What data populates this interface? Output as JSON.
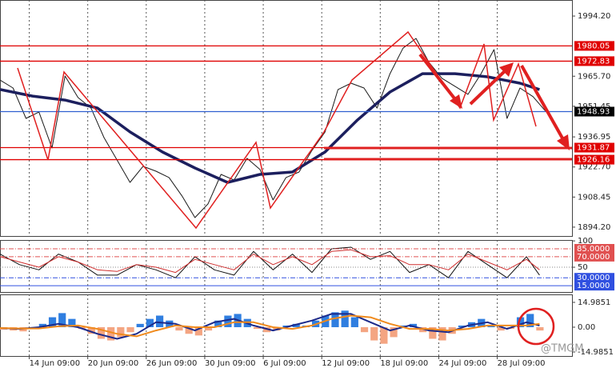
{
  "chart_data": [
    {
      "type": "line",
      "xlim": [
        0,
        176
      ],
      "ylim": [
        1890,
        2001.8
      ],
      "yticks": [
        {
          "value": 1994.2,
          "label": "1994.20"
        },
        {
          "value": 1965.7,
          "label": "1965.70"
        },
        1951.45,
        1936.95,
        {
          "value": 1922.7,
          "label": "1922.70"
        },
        1908.45,
        {
          "value": 1894.2,
          "label": "1894.20"
        }
      ],
      "levels": [
        {
          "value": 1980.05,
          "color": "#e00000"
        },
        {
          "value": 1972.83,
          "color": "#e00000"
        },
        {
          "value": 1948.93,
          "color": "#000000",
          "line_color": "#3060d0"
        },
        {
          "value": 1931.87,
          "color": "#e00000"
        },
        {
          "value": 1926.16,
          "color": "#e00000"
        }
      ],
      "series": [
        {
          "color": "#1a1a1a",
          "x": [
            0,
            4,
            8,
            12,
            16,
            20,
            24,
            28,
            32,
            36,
            40,
            44,
            48,
            52,
            56,
            60,
            64,
            68,
            72,
            76,
            80,
            84,
            88,
            92,
            96,
            100,
            104,
            108,
            112,
            116,
            120,
            124,
            128,
            132,
            136,
            140,
            144,
            148,
            152,
            156,
            160,
            164,
            168
          ],
          "values": [
            1963.9,
            1960.1,
            1945.7,
            1948.7,
            1931.7,
            1965.8,
            1955.6,
            1950.6,
            1936.6,
            1926.0,
            1915.4,
            1923.0,
            1920.7,
            1917.7,
            1909.0,
            1898.7,
            1905.2,
            1919.2,
            1916.5,
            1926.8,
            1921.5,
            1907.1,
            1917.7,
            1920.3,
            1930.6,
            1939.3,
            1959.4,
            1962.4,
            1960.1,
            1950.6,
            1966.9,
            1979.0,
            1983.6,
            1972.2,
            1964.7,
            1960.9,
            1957.1,
            1966.9,
            1978.3,
            1945.7,
            1960.1,
            1956.0,
            1948.9
          ]
        },
        {
          "color": "#1c1f5e",
          "x": [
            0,
            10,
            20,
            30,
            40,
            50,
            60,
            70,
            80,
            90,
            100,
            110,
            120,
            130,
            140,
            150,
            160,
            166
          ],
          "values": [
            1959.4,
            1956.3,
            1954.4,
            1950.6,
            1939.3,
            1929.8,
            1922.2,
            1915.4,
            1919.2,
            1920.3,
            1929.8,
            1945.0,
            1958.2,
            1966.9,
            1966.9,
            1965.4,
            1962.4,
            1959.4
          ]
        }
      ]
    },
    {
      "type": "line",
      "xlim": [
        0,
        176
      ],
      "ylim": [
        3,
        101.7
      ],
      "yticks": [
        100,
        50
      ],
      "levels": [
        {
          "value": 85,
          "label": "85.0000",
          "color": "#e05050"
        },
        {
          "value": 70,
          "label": "70.0000",
          "color": "#e05050"
        },
        {
          "value": 30,
          "label": "30.0000",
          "color": "#3050e0"
        },
        {
          "value": 15,
          "label": "15.0000",
          "color": "#3050e0"
        }
      ],
      "series": [
        {
          "color": "#111111",
          "x": [
            0,
            6,
            12,
            18,
            24,
            30,
            36,
            42,
            48,
            54,
            60,
            66,
            72,
            78,
            84,
            90,
            96,
            102,
            108,
            114,
            120,
            126,
            132,
            138,
            144,
            150,
            156,
            162,
            166
          ],
          "values": [
            75,
            55,
            45,
            75,
            60,
            35,
            35,
            55,
            45,
            30,
            70,
            45,
            35,
            80,
            45,
            75,
            40,
            85,
            88,
            65,
            80,
            40,
            55,
            30,
            80,
            55,
            30,
            70,
            35
          ]
        },
        {
          "color": "#d03030",
          "x": [
            0,
            6,
            12,
            18,
            24,
            30,
            36,
            42,
            48,
            54,
            60,
            66,
            72,
            78,
            84,
            90,
            96,
            102,
            108,
            114,
            120,
            126,
            132,
            138,
            144,
            150,
            156,
            162,
            166
          ],
          "values": [
            70,
            60,
            50,
            70,
            60,
            45,
            42,
            55,
            50,
            40,
            65,
            55,
            45,
            75,
            55,
            70,
            55,
            80,
            83,
            70,
            72,
            55,
            55,
            45,
            75,
            60,
            45,
            65,
            45
          ]
        }
      ]
    },
    {
      "type": "macd",
      "xlim": [
        0,
        176
      ],
      "ylim": [
        -17.4,
        19.8
      ],
      "yticks": [
        14.9851,
        {
          "value": 0,
          "label": "0.00"
        },
        -14.9851
      ],
      "xticks": [
        {
          "value": 9,
          "label": "14 Jun 09:00"
        },
        {
          "value": 27,
          "label": "20 Jun 09:00"
        },
        {
          "value": 45,
          "label": "26 Jun 09:00"
        },
        {
          "value": 63,
          "label": "30 Jun 09:00"
        },
        {
          "value": 81,
          "label": "6 Jul 09:00"
        },
        {
          "value": 99,
          "label": "12 Jul 09:00"
        },
        {
          "value": 117,
          "label": "18 Jul 09:00"
        },
        {
          "value": 135,
          "label": "24 Jul 09:00"
        },
        {
          "value": 153,
          "label": "28 Jul 09:00"
        }
      ],
      "histogram": {
        "positive_color": "#2f7ee0",
        "negative_color": "#f4a582",
        "x": [
          0,
          3,
          6,
          9,
          12,
          15,
          18,
          21,
          24,
          27,
          30,
          33,
          36,
          39,
          42,
          45,
          48,
          51,
          54,
          57,
          60,
          63,
          66,
          69,
          72,
          75,
          78,
          81,
          84,
          87,
          90,
          93,
          96,
          99,
          102,
          105,
          108,
          111,
          114,
          117,
          120,
          123,
          126,
          129,
          132,
          135,
          138,
          141,
          144,
          147,
          150,
          153,
          156,
          159,
          162,
          165
        ],
        "values": [
          -1.5,
          -2,
          -2.5,
          -1,
          2,
          6,
          8.5,
          5,
          -1,
          -4,
          -7,
          -8,
          -6,
          -3,
          2,
          5,
          7,
          4,
          -2,
          -4,
          -5,
          -2,
          4,
          7,
          8,
          5,
          -1,
          -3,
          -2,
          1,
          2,
          1,
          4,
          7,
          9,
          10,
          6,
          -3,
          -8,
          -10,
          -6,
          1,
          2,
          -3,
          -7,
          -8,
          -4,
          1,
          3,
          5,
          1,
          -2,
          -1,
          6,
          8,
          -2
        ]
      },
      "series": [
        {
          "color": "#1c2a8a",
          "x": [
            0,
            6,
            12,
            18,
            24,
            30,
            36,
            42,
            48,
            54,
            60,
            66,
            72,
            78,
            84,
            90,
            96,
            102,
            108,
            114,
            120,
            126,
            132,
            138,
            144,
            150,
            156,
            162,
            166
          ],
          "values": [
            -0.5,
            -1,
            0,
            2,
            0,
            -4,
            -7,
            -4,
            3,
            2,
            -2,
            3,
            5,
            1,
            -2,
            1,
            4,
            8,
            8,
            3,
            -2,
            1,
            -2,
            -3,
            1,
            3,
            -1,
            3,
            1
          ]
        },
        {
          "color": "#f08a1c",
          "x": [
            0,
            6,
            12,
            18,
            24,
            30,
            36,
            42,
            48,
            54,
            60,
            66,
            72,
            78,
            84,
            90,
            96,
            102,
            108,
            114,
            120,
            126,
            132,
            138,
            144,
            150,
            156,
            162,
            166
          ],
          "values": [
            -0.5,
            -0.8,
            -0.8,
            0.5,
            1,
            -1,
            -4,
            -5.5,
            -2,
            1,
            0,
            0,
            3,
            3,
            0,
            -1,
            1,
            5,
            7,
            6,
            2,
            -1,
            -1,
            -2,
            -1,
            1,
            1,
            1,
            2
          ]
        }
      ]
    }
  ],
  "watermark": "@TMGM"
}
